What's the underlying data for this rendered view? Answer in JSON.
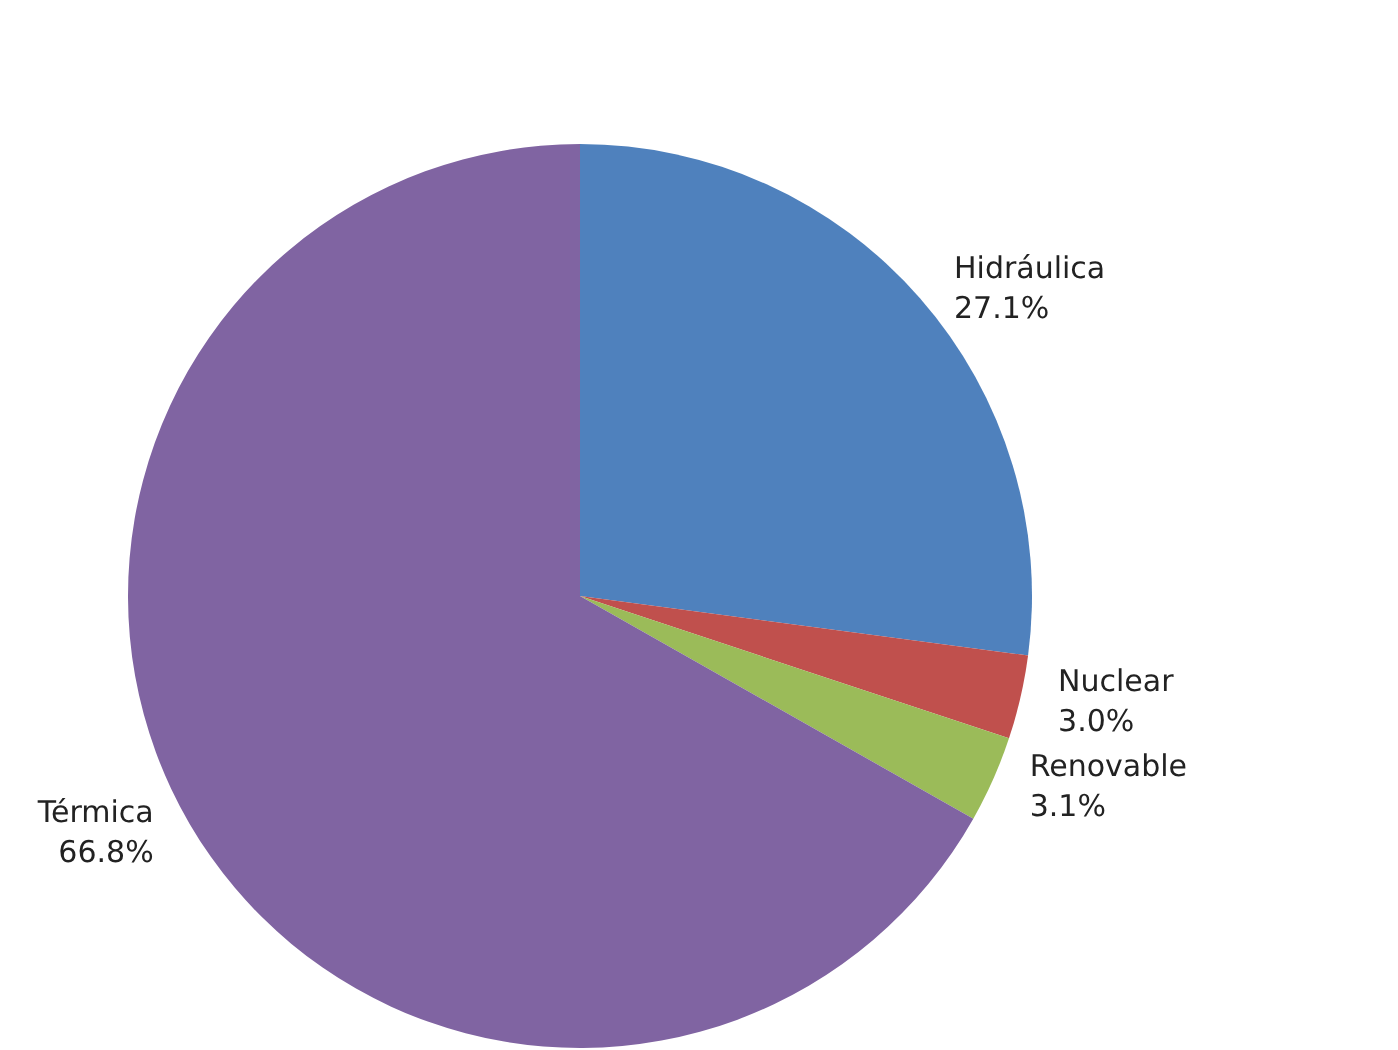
{
  "chart_data": {
    "type": "pie",
    "categories": [
      "Hidráulica",
      "Nuclear",
      "Renovable",
      "Térmica"
    ],
    "values": [
      27.1,
      3.0,
      3.1,
      66.8
    ],
    "colors": [
      "#4f81bd",
      "#c0504d",
      "#9bbb59",
      "#8064a2"
    ],
    "value_labels": [
      "27.1%",
      "3.0%",
      "3.1%",
      "66.8%"
    ],
    "legend": false
  }
}
